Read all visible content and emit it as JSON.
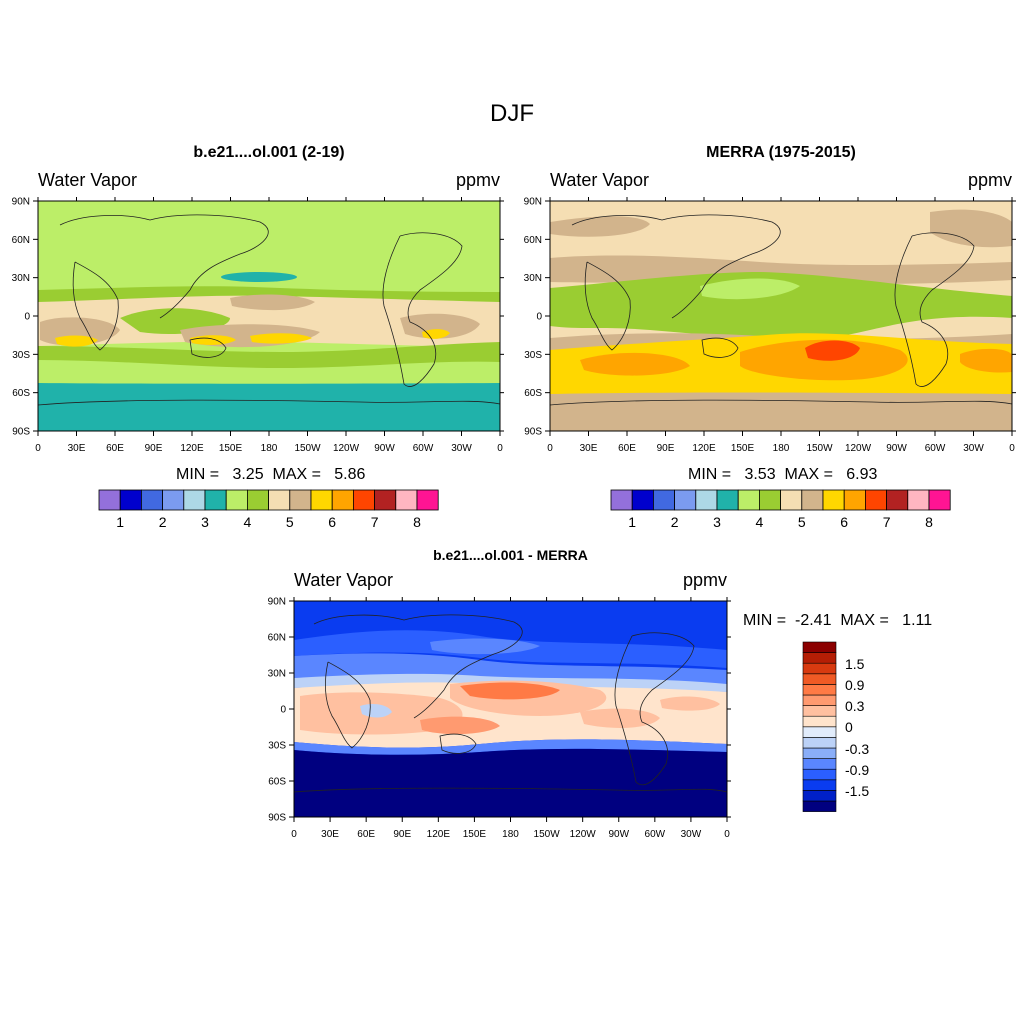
{
  "figure": {
    "title": "DJF"
  },
  "colors": {
    "full_field_palette": [
      "#9370DB",
      "#0000CD",
      "#4169E1",
      "#7B9BF0",
      "#ADD8E6",
      "#20B2AA",
      "#BCEE68",
      "#9ACD32",
      "#F5DEB3",
      "#D2B48C",
      "#FFD700",
      "#FFA500",
      "#FF4500",
      "#B22222",
      "#FFB6C1",
      "#FF1493"
    ],
    "diff_palette": [
      "#000080",
      "#0020C8",
      "#0A3CF0",
      "#2B5FFF",
      "#5A86FF",
      "#8AAEF8",
      "#BCD2F7",
      "#E1ECFB",
      "#FFE4CC",
      "#FFC0A0",
      "#FF9A70",
      "#FF7A45",
      "#F05A25",
      "#D83A10",
      "#B51E05",
      "#8B0000"
    ]
  },
  "panels": [
    {
      "title": "b.e21....ol.001 (2-19)",
      "left": "Water Vapor",
      "right": "ppmv",
      "stats": "MIN =   3.25  MAX =   5.86"
    },
    {
      "title": "MERRA (1975-2015)",
      "left": "Water Vapor",
      "right": "ppmv",
      "stats": "MIN =   3.53  MAX =   6.93"
    },
    {
      "title": "b.e21....ol.001 - MERRA",
      "left": "Water Vapor",
      "right": "ppmv",
      "stats": "MIN =  -2.41  MAX =   1.11"
    }
  ],
  "chart_data": [
    {
      "type": "heatmap",
      "title": "b.e21....ol.001 (2-19)",
      "variable": "Water Vapor",
      "units": "ppmv",
      "min": 3.25,
      "max": 5.86,
      "x_ticks": [
        "0",
        "30E",
        "60E",
        "90E",
        "120E",
        "150E",
        "180",
        "150W",
        "120W",
        "90W",
        "60W",
        "30W",
        "0"
      ],
      "y_ticks": [
        "90N",
        "60N",
        "30N",
        "0",
        "30S",
        "60S",
        "90S"
      ],
      "colorbar_levels": [
        1,
        1.5,
        2,
        2.5,
        3,
        3.5,
        4,
        4.5,
        5,
        5.5,
        6,
        6.5,
        7,
        7.5,
        8
      ],
      "colorbar_labels": [
        "1",
        "2",
        "3",
        "4",
        "5",
        "6",
        "7",
        "8"
      ],
      "zonal_profile": [
        {
          "lat": 90,
          "value": 4.25
        },
        {
          "lat": 60,
          "value": 4.25
        },
        {
          "lat": 30,
          "value": 4.3
        },
        {
          "lat": 20,
          "value": 4.6
        },
        {
          "lat": 0,
          "value": 5.0
        },
        {
          "lat": -20,
          "value": 5.2
        },
        {
          "lat": -35,
          "value": 4.6
        },
        {
          "lat": -50,
          "value": 4.3
        },
        {
          "lat": -60,
          "value": 3.8
        },
        {
          "lat": -90,
          "value": 3.8
        }
      ]
    },
    {
      "type": "heatmap",
      "title": "MERRA (1975-2015)",
      "variable": "Water Vapor",
      "units": "ppmv",
      "min": 3.53,
      "max": 6.93,
      "x_ticks": [
        "0",
        "30E",
        "60E",
        "90E",
        "120E",
        "150E",
        "180",
        "150W",
        "120W",
        "90W",
        "60W",
        "30W",
        "0"
      ],
      "y_ticks": [
        "90N",
        "60N",
        "30N",
        "0",
        "30S",
        "60S",
        "90S"
      ],
      "colorbar_levels": [
        1,
        1.5,
        2,
        2.5,
        3,
        3.5,
        4,
        4.5,
        5,
        5.5,
        6,
        6.5,
        7,
        7.5,
        8
      ],
      "colorbar_labels": [
        "1",
        "2",
        "3",
        "4",
        "5",
        "6",
        "7",
        "8"
      ],
      "zonal_profile": [
        {
          "lat": 90,
          "value": 5.0
        },
        {
          "lat": 60,
          "value": 5.1
        },
        {
          "lat": 35,
          "value": 5.3
        },
        {
          "lat": 20,
          "value": 4.6
        },
        {
          "lat": 0,
          "value": 4.8
        },
        {
          "lat": -20,
          "value": 5.0
        },
        {
          "lat": -35,
          "value": 6.3
        },
        {
          "lat": -50,
          "value": 6.2
        },
        {
          "lat": -60,
          "value": 5.6
        },
        {
          "lat": -90,
          "value": 5.4
        }
      ]
    },
    {
      "type": "heatmap",
      "title": "b.e21....ol.001 - MERRA",
      "variable": "Water Vapor",
      "units": "ppmv",
      "min": -2.41,
      "max": 1.11,
      "x_ticks": [
        "0",
        "30E",
        "60E",
        "90E",
        "120E",
        "150E",
        "180",
        "150W",
        "120W",
        "90W",
        "60W",
        "30W",
        "0"
      ],
      "y_ticks": [
        "90N",
        "60N",
        "30N",
        "0",
        "30S",
        "60S",
        "90S"
      ],
      "colorbar_levels": [
        -2.1,
        -1.8,
        -1.5,
        -1.2,
        -0.9,
        -0.6,
        -0.3,
        0,
        0.3,
        0.6,
        0.9,
        1.2,
        1.5,
        1.8,
        2.1
      ],
      "colorbar_labels": [
        "1.5",
        "0.9",
        "0.3",
        "0",
        "-0.3",
        "-0.9",
        "-1.5"
      ],
      "zonal_profile": [
        {
          "lat": 90,
          "value": -0.9
        },
        {
          "lat": 60,
          "value": -1.0
        },
        {
          "lat": 40,
          "value": -0.6
        },
        {
          "lat": 25,
          "value": 0.2
        },
        {
          "lat": 10,
          "value": 0.6
        },
        {
          "lat": 0,
          "value": 0.3
        },
        {
          "lat": -15,
          "value": 0.3
        },
        {
          "lat": -25,
          "value": -0.3
        },
        {
          "lat": -30,
          "value": -1.5
        },
        {
          "lat": -90,
          "value": -2.1
        }
      ]
    }
  ]
}
